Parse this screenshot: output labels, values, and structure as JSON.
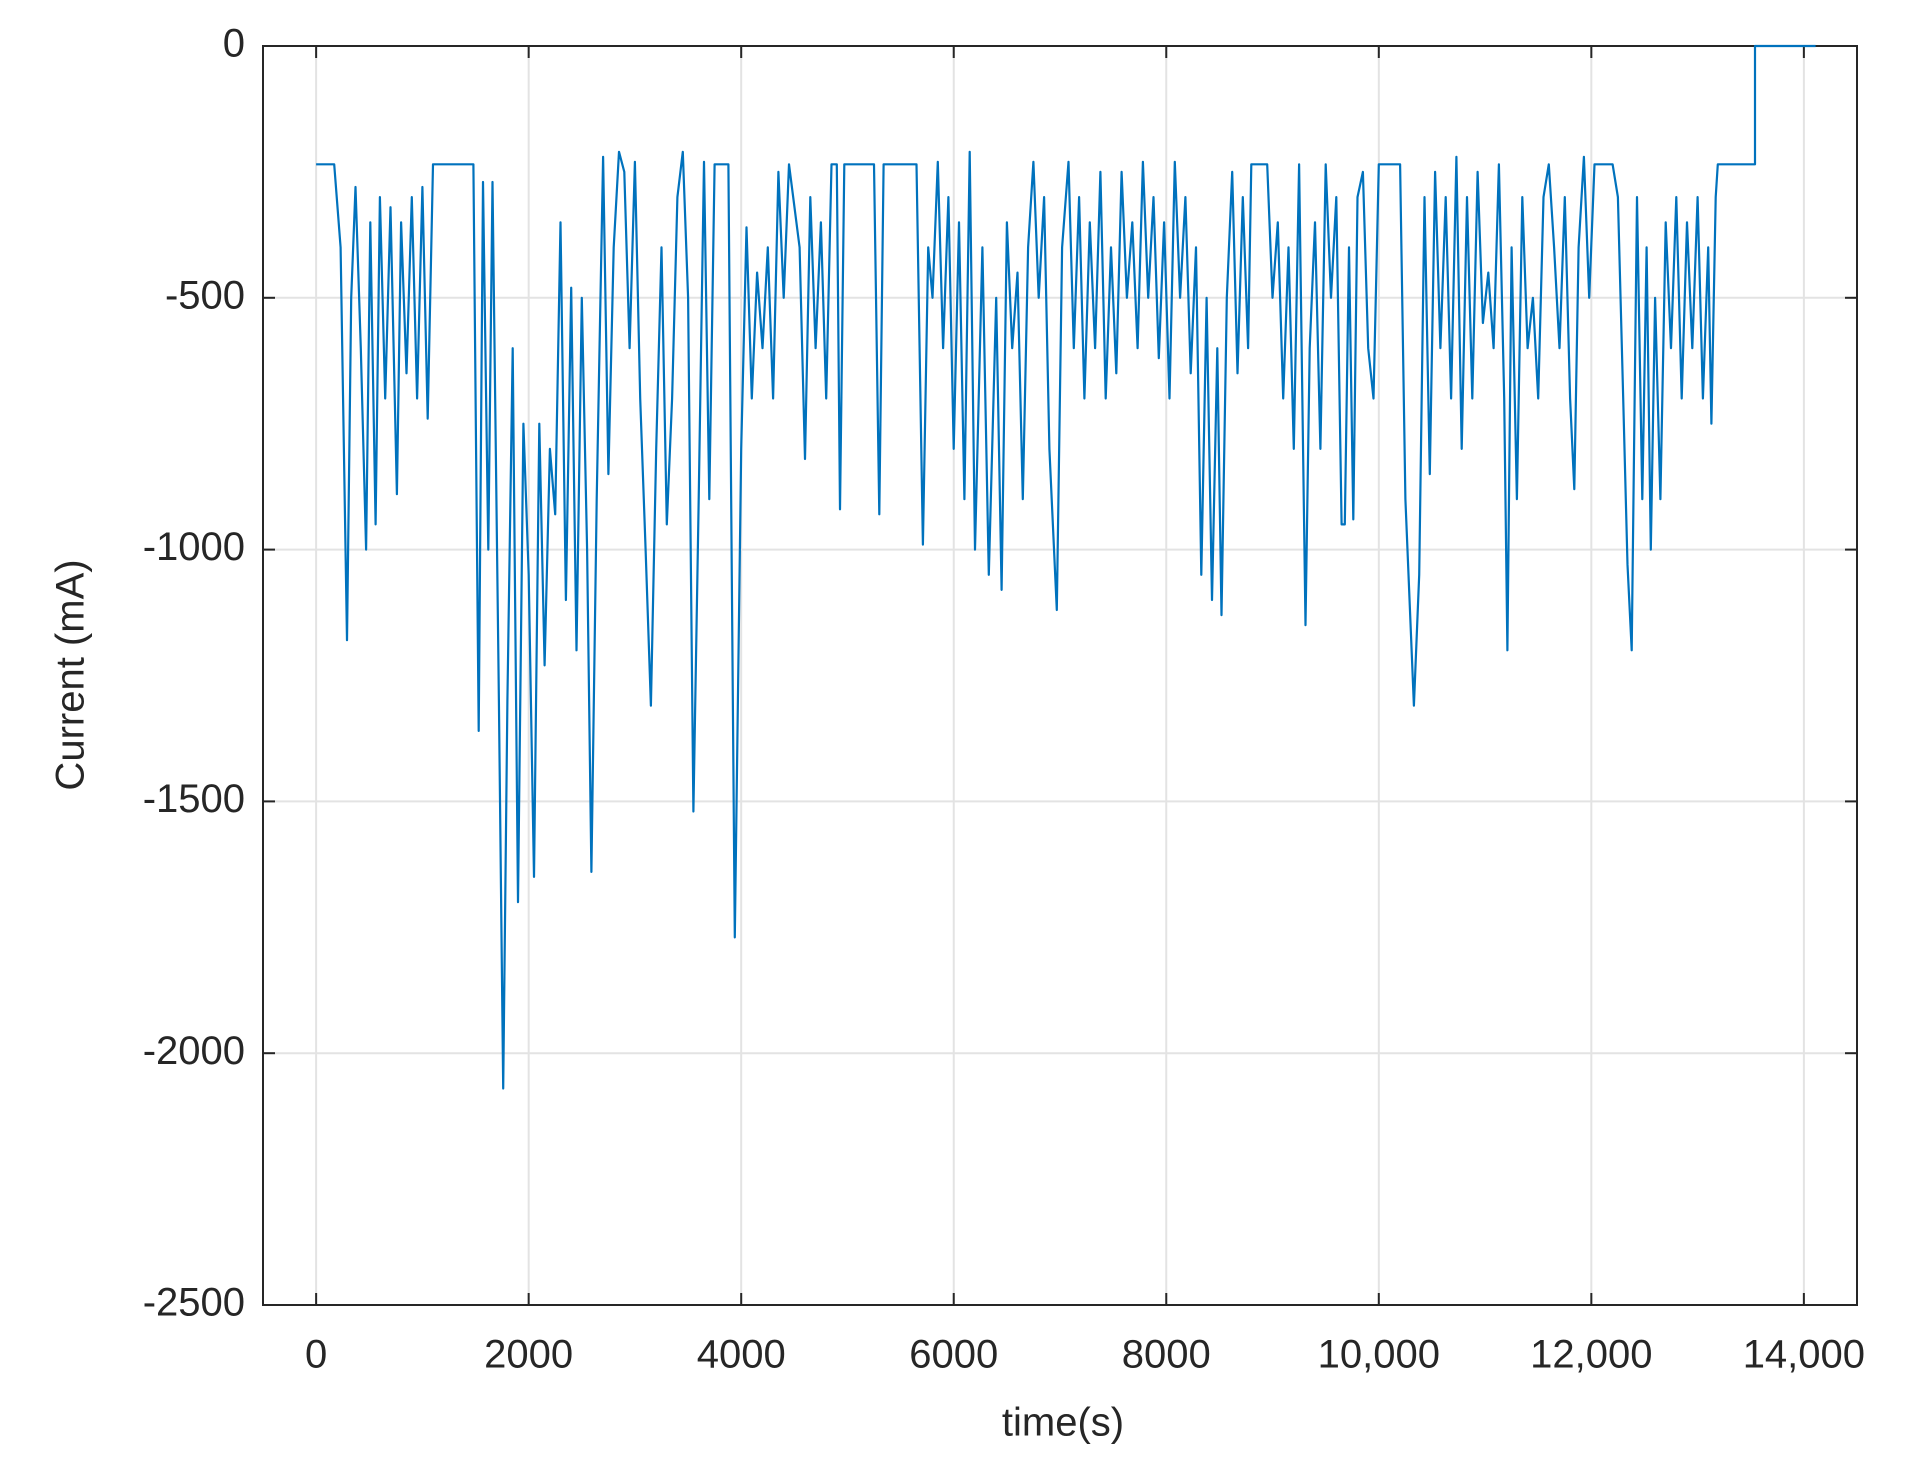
{
  "chart_data": {
    "type": "line",
    "x_label": "time(s)",
    "y_label": "Current (mA)",
    "xlim": [
      -500,
      14500
    ],
    "ylim": [
      -2500,
      0
    ],
    "xticks": [
      0,
      2000,
      4000,
      6000,
      8000,
      {
        "value": 10000,
        "label": "10,000"
      },
      {
        "value": 12000,
        "label": "12,000"
      },
      {
        "value": 14000,
        "label": "14,000"
      }
    ],
    "yticks": [
      -2500,
      -2000,
      -1500,
      -1000,
      -500,
      0
    ],
    "grid": true,
    "series": [
      {
        "color": "#0072bd",
        "x": [
          0,
          170,
          230,
          290,
          330,
          370,
          420,
          470,
          510,
          560,
          600,
          650,
          700,
          760,
          800,
          850,
          900,
          950,
          1000,
          1050,
          1100,
          1480,
          1530,
          1570,
          1620,
          1660,
          1720,
          1760,
          1800,
          1850,
          1900,
          1950,
          2000,
          2050,
          2100,
          2150,
          2200,
          2250,
          2300,
          2350,
          2400,
          2450,
          2500,
          2550,
          2590,
          2640,
          2700,
          2750,
          2800,
          2850,
          2900,
          2950,
          3000,
          3050,
          3100,
          3150,
          3200,
          3250,
          3300,
          3350,
          3400,
          3450,
          3500,
          3550,
          3600,
          3650,
          3700,
          3750,
          3880,
          3940,
          4000,
          4050,
          4100,
          4150,
          4200,
          4250,
          4300,
          4350,
          4400,
          4450,
          4550,
          4600,
          4650,
          4700,
          4750,
          4800,
          4850,
          4900,
          4930,
          4970,
          5250,
          5300,
          5340,
          5650,
          5710,
          5760,
          5800,
          5850,
          5900,
          5950,
          6000,
          6050,
          6100,
          6150,
          6200,
          6270,
          6330,
          6400,
          6450,
          6500,
          6550,
          6600,
          6650,
          6700,
          6750,
          6800,
          6850,
          6900,
          6970,
          7020,
          7080,
          7130,
          7180,
          7230,
          7280,
          7330,
          7380,
          7430,
          7480,
          7530,
          7580,
          7630,
          7680,
          7730,
          7780,
          7830,
          7880,
          7930,
          7980,
          8030,
          8080,
          8130,
          8180,
          8230,
          8280,
          8330,
          8380,
          8430,
          8480,
          8520,
          8570,
          8620,
          8670,
          8720,
          8770,
          8800,
          8950,
          9000,
          9050,
          9100,
          9150,
          9200,
          9250,
          9310,
          9350,
          9400,
          9450,
          9500,
          9550,
          9600,
          9650,
          9680,
          9720,
          9760,
          9800,
          9850,
          9900,
          9950,
          10000,
          10200,
          10250,
          10330,
          10380,
          10430,
          10480,
          10530,
          10580,
          10630,
          10680,
          10730,
          10780,
          10830,
          10880,
          10930,
          10980,
          11030,
          11080,
          11130,
          11180,
          11210,
          11250,
          11300,
          11350,
          11400,
          11450,
          11500,
          11550,
          11600,
          11650,
          11700,
          11750,
          11800,
          11840,
          11880,
          11930,
          11980,
          12030,
          12200,
          12250,
          12300,
          12340,
          12380,
          12430,
          12480,
          12520,
          12560,
          12600,
          12650,
          12700,
          12750,
          12800,
          12850,
          12900,
          12950,
          13000,
          13050,
          13100,
          13130,
          13170,
          13190,
          13540,
          13540,
          14110
        ],
        "values": [
          -235,
          -235,
          -400,
          -1180,
          -500,
          -280,
          -600,
          -1000,
          -350,
          -950,
          -300,
          -700,
          -320,
          -890,
          -350,
          -650,
          -300,
          -700,
          -280,
          -740,
          -235,
          -235,
          -1360,
          -270,
          -1000,
          -270,
          -1300,
          -2070,
          -1300,
          -600,
          -1700,
          -750,
          -1050,
          -1650,
          -750,
          -1230,
          -800,
          -930,
          -350,
          -1100,
          -480,
          -1200,
          -500,
          -1000,
          -1640,
          -900,
          -220,
          -850,
          -400,
          -210,
          -250,
          -600,
          -230,
          -700,
          -1000,
          -1310,
          -800,
          -400,
          -950,
          -700,
          -300,
          -210,
          -500,
          -1520,
          -900,
          -230,
          -900,
          -235,
          -235,
          -1770,
          -800,
          -360,
          -700,
          -450,
          -600,
          -400,
          -700,
          -250,
          -500,
          -235,
          -400,
          -820,
          -300,
          -600,
          -350,
          -700,
          -235,
          -235,
          -920,
          -235,
          -235,
          -930,
          -235,
          -235,
          -990,
          -400,
          -500,
          -230,
          -600,
          -300,
          -800,
          -350,
          -900,
          -210,
          -1000,
          -400,
          -1050,
          -500,
          -1080,
          -350,
          -600,
          -450,
          -900,
          -400,
          -230,
          -500,
          -300,
          -800,
          -1120,
          -400,
          -230,
          -600,
          -300,
          -700,
          -350,
          -600,
          -250,
          -700,
          -400,
          -650,
          -250,
          -500,
          -350,
          -600,
          -230,
          -500,
          -300,
          -620,
          -350,
          -700,
          -230,
          -500,
          -300,
          -650,
          -400,
          -1050,
          -500,
          -1100,
          -600,
          -1130,
          -500,
          -250,
          -650,
          -300,
          -600,
          -235,
          -235,
          -500,
          -350,
          -700,
          -400,
          -800,
          -235,
          -1150,
          -600,
          -350,
          -800,
          -235,
          -500,
          -300,
          -950,
          -950,
          -400,
          -940,
          -300,
          -250,
          -600,
          -700,
          -235,
          -235,
          -900,
          -1310,
          -1050,
          -300,
          -850,
          -250,
          -600,
          -300,
          -700,
          -220,
          -800,
          -300,
          -700,
          -250,
          -550,
          -450,
          -600,
          -235,
          -700,
          -1200,
          -400,
          -900,
          -300,
          -600,
          -500,
          -700,
          -300,
          -235,
          -400,
          -600,
          -300,
          -700,
          -880,
          -400,
          -220,
          -500,
          -235,
          -235,
          -300,
          -700,
          -1030,
          -1200,
          -300,
          -900,
          -400,
          -1000,
          -500,
          -900,
          -350,
          -600,
          -300,
          -700,
          -350,
          -600,
          -300,
          -700,
          -400,
          -750,
          -300,
          -235,
          -235,
          0,
          0
        ]
      }
    ]
  }
}
